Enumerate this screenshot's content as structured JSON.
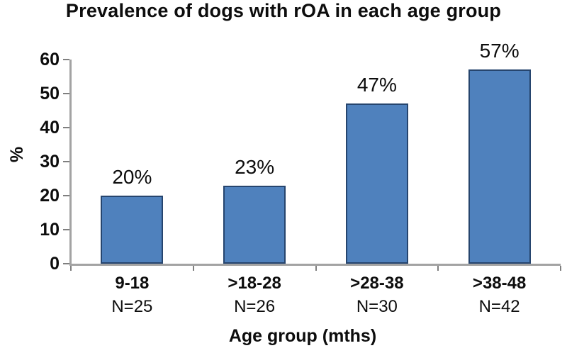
{
  "chart_data": {
    "type": "bar",
    "title": "Prevalence of dogs with rOA in each age group",
    "xlabel": "Age group (mths)",
    "ylabel": "%",
    "categories": [
      "9-18",
      ">18-28",
      ">28-38",
      ">38-48"
    ],
    "values": [
      20,
      23,
      47,
      57
    ],
    "bar_labels": [
      "20%",
      "23%",
      "47%",
      "57%"
    ],
    "n_labels": [
      "N=25",
      "N=26",
      "N=30",
      "N=42"
    ],
    "ylim": [
      0,
      60
    ],
    "yticks": [
      0,
      10,
      20,
      30,
      40,
      50,
      60
    ],
    "grid": false,
    "legend": "none",
    "colors": {
      "bar_fill": "#4F81BD",
      "bar_border": "#26456E",
      "axis_line": "#A3A3A3",
      "tick_mark": "#7F7F7F",
      "text": "#0D0D0D"
    }
  }
}
